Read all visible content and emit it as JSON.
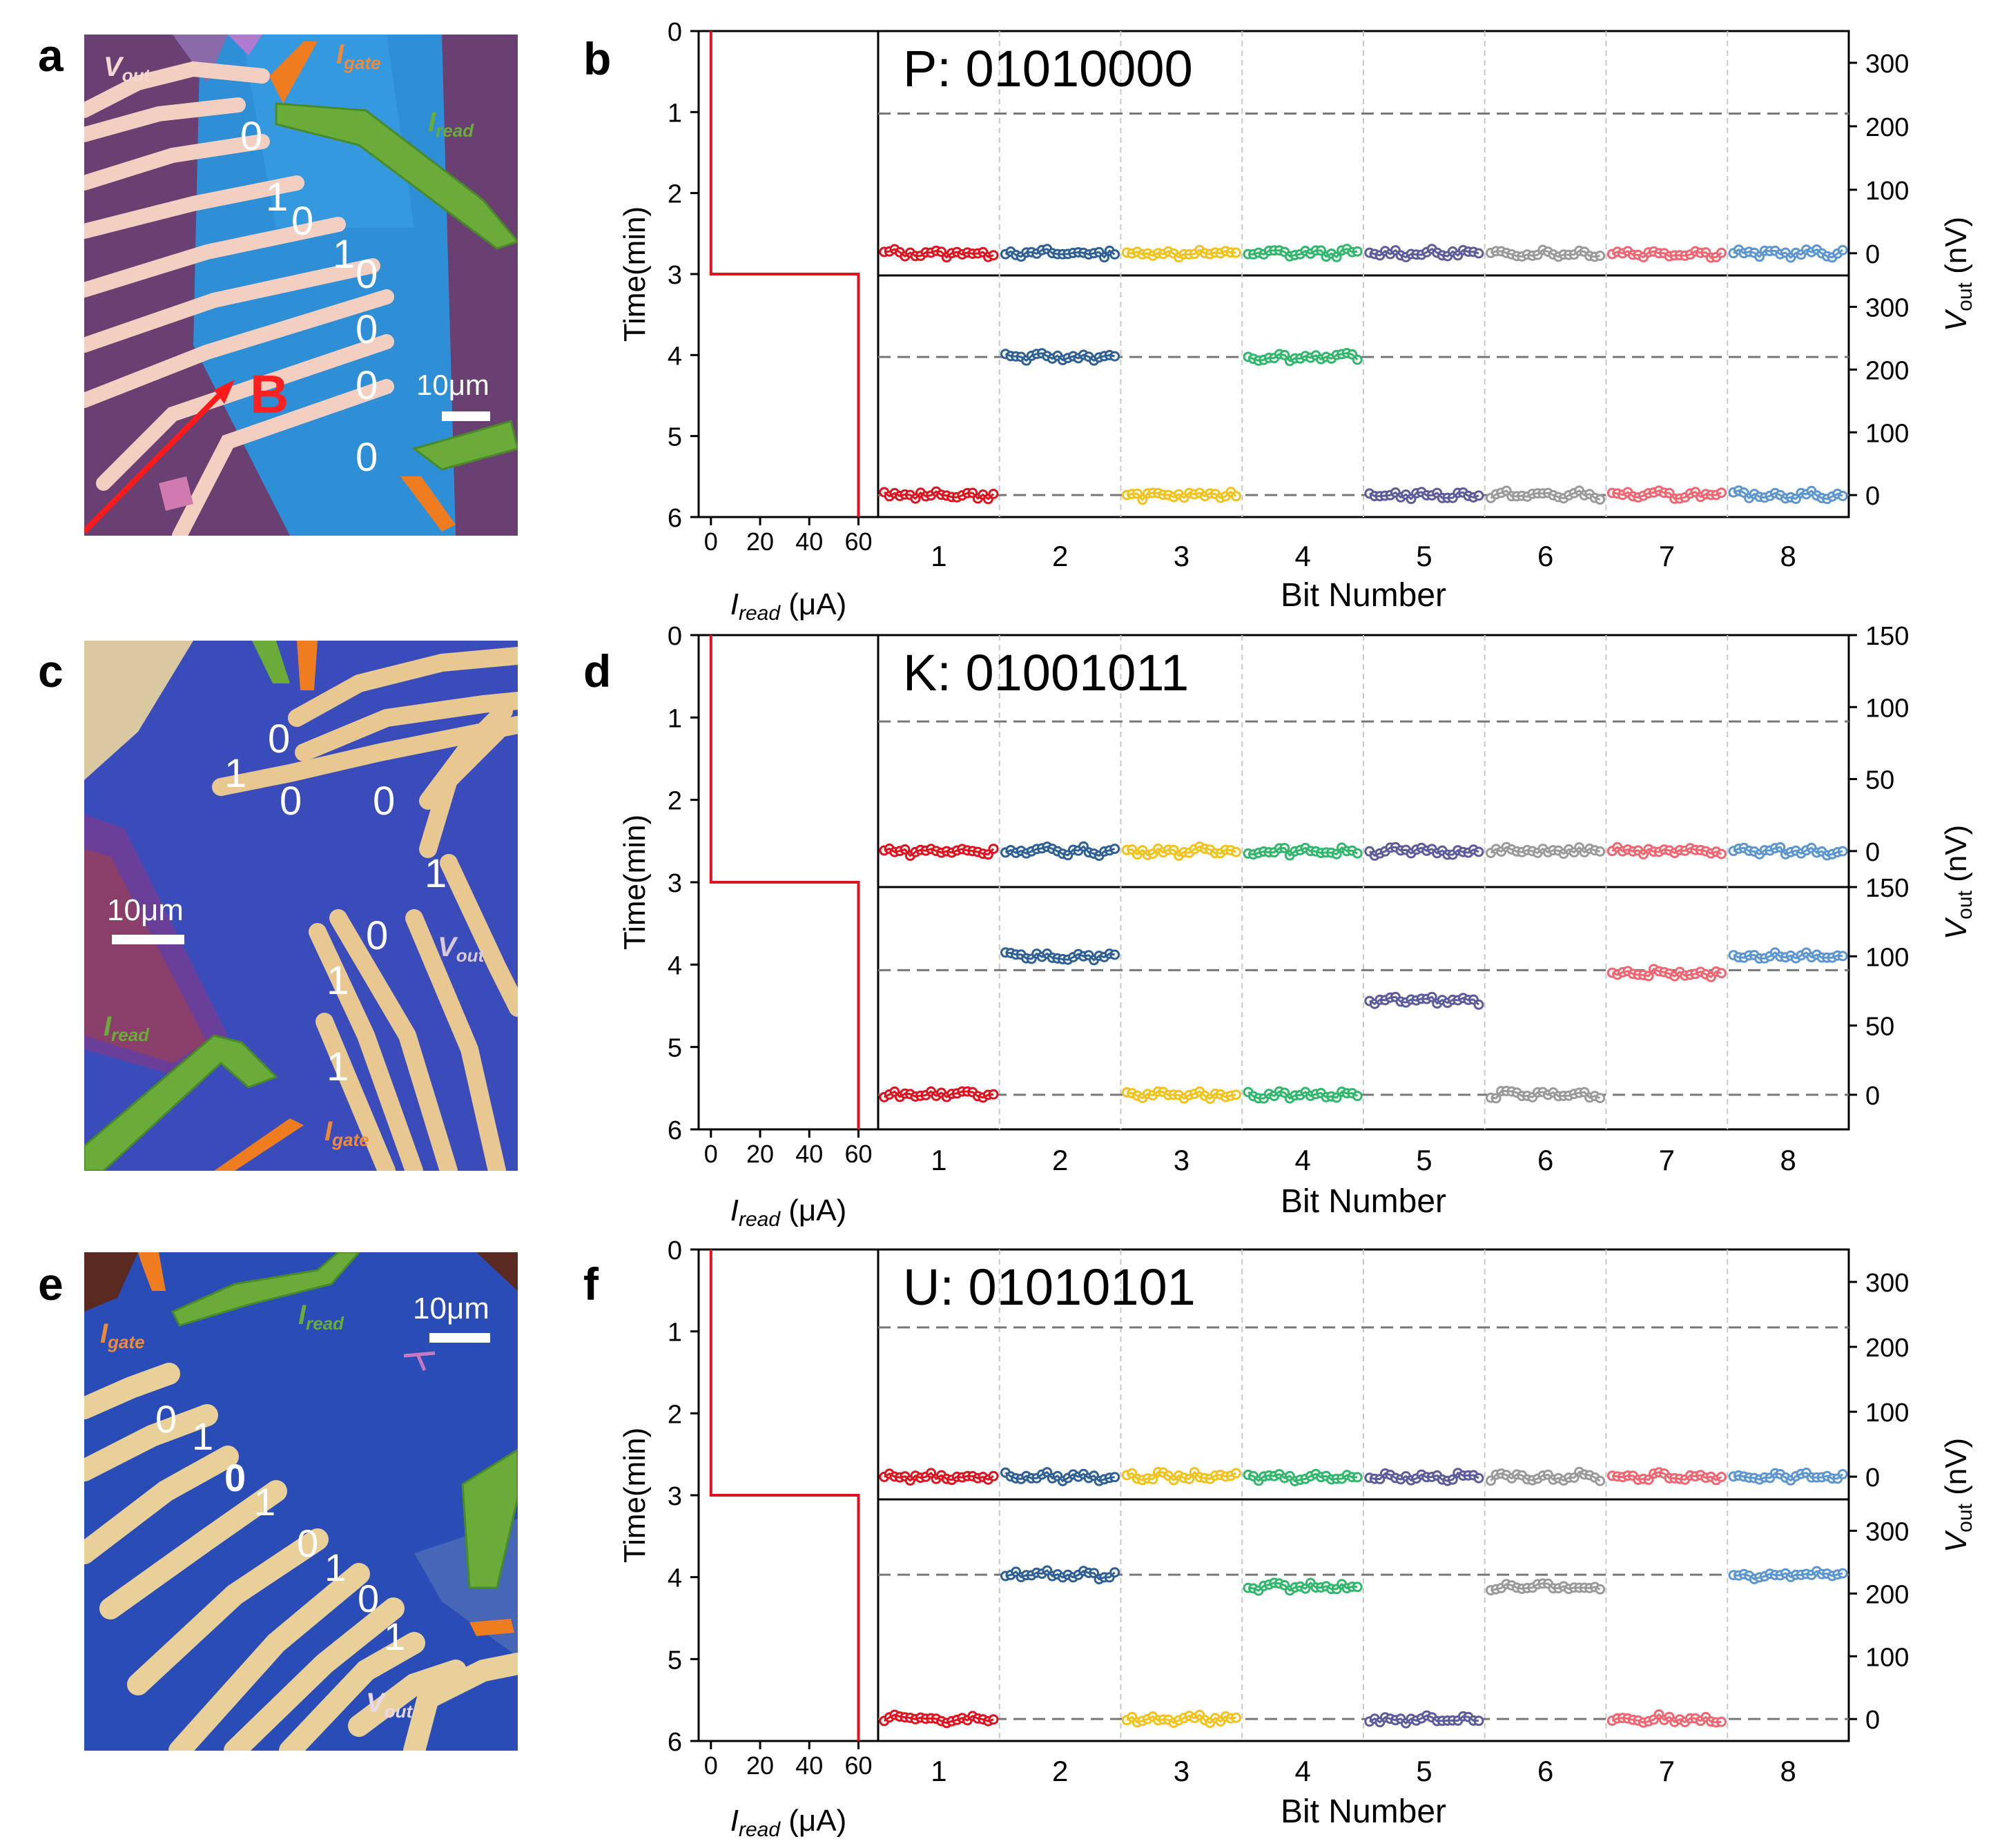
{
  "colors": {
    "bit": [
      "#e0121e",
      "#2e5f97",
      "#f3c21a",
      "#2fb86b",
      "#5b5b9e",
      "#9a9a9a",
      "#f26470",
      "#5b95d2"
    ],
    "current_trace": "#e0121e",
    "reference_line": "#777777",
    "divider_line": "#c8c8c8"
  },
  "labels": {
    "time_axis": "Time(min)",
    "current_axis_symbol": "I",
    "current_axis_sub": "read",
    "current_axis_unit": " (μA)",
    "voltage_axis_symbol": "V",
    "voltage_axis_sub": "out",
    "voltage_axis_unit": " (nV)",
    "bit_axis": "Bit Number"
  },
  "images": [
    {
      "panel": "a",
      "scale_bar": "10μm",
      "field_label": "B",
      "terminal_vout": "V",
      "terminal_vout_sub": "out",
      "terminal_igate": "I",
      "terminal_igate_sub": "gate",
      "terminal_iread": "I",
      "terminal_iread_sub": "read",
      "bits": [
        "0",
        "1",
        "0",
        "1",
        "0",
        "0",
        "0",
        "0"
      ]
    },
    {
      "panel": "c",
      "scale_bar": "10μm",
      "terminal_vout": "V",
      "terminal_vout_sub": "out",
      "terminal_igate": "I",
      "terminal_igate_sub": "gate",
      "terminal_iread": "I",
      "terminal_iread_sub": "read",
      "bits": [
        "0",
        "1",
        "0",
        "0",
        "1",
        "0",
        "1",
        "1"
      ]
    },
    {
      "panel": "e",
      "scale_bar": "10μm",
      "terminal_vout": "V",
      "terminal_vout_sub": "out",
      "terminal_igate": "I",
      "terminal_igate_sub": "gate",
      "terminal_iread": "I",
      "terminal_iread_sub": "read",
      "bits": [
        "0",
        "1",
        "0",
        "1",
        "0",
        "1",
        "0",
        "1"
      ]
    }
  ],
  "chart_data": [
    {
      "panel": "b",
      "type": "line",
      "title": "P: 01010000",
      "current_trace": {
        "time_min": [
          0,
          3,
          3,
          6
        ],
        "current_uA": [
          0,
          0,
          60,
          60
        ],
        "xlim": [
          -5,
          68
        ],
        "xticks": [
          0,
          20,
          40,
          60
        ]
      },
      "time_axis": {
        "ylim": [
          0,
          6
        ],
        "ticks": [
          0,
          1,
          2,
          3,
          4,
          5,
          6
        ]
      },
      "bit_axis": {
        "xlim": [
          0.5,
          8.5
        ],
        "ticks": [
          "1",
          "2",
          "3",
          "4",
          "5",
          "6",
          "7",
          "8"
        ]
      },
      "voltage_axis": {
        "ylim": [
          -35,
          350
        ],
        "ticks": [
          0,
          100,
          200,
          300
        ]
      },
      "reference_levels_nV": [
        0,
        220
      ],
      "before_switch_nV": [
        0,
        0,
        0,
        0,
        0,
        0,
        0,
        0
      ],
      "after_switch_nV": [
        0,
        220,
        0,
        220,
        0,
        0,
        0,
        0
      ],
      "bits": "01010000"
    },
    {
      "panel": "d",
      "type": "line",
      "title": "K: 01001011",
      "current_trace": {
        "time_min": [
          0,
          3,
          3,
          6
        ],
        "current_uA": [
          0,
          0,
          60,
          60
        ],
        "xlim": [
          -5,
          68
        ],
        "xticks": [
          0,
          20,
          40,
          60
        ]
      },
      "time_axis": {
        "ylim": [
          0,
          6
        ],
        "ticks": [
          0,
          1,
          2,
          3,
          4,
          5,
          6
        ]
      },
      "bit_axis": {
        "xlim": [
          0.5,
          8.5
        ],
        "ticks": [
          "1",
          "2",
          "3",
          "4",
          "5",
          "6",
          "7",
          "8"
        ]
      },
      "voltage_axis": {
        "ylim": [
          -25,
          150
        ],
        "ticks": [
          0,
          50,
          100,
          150
        ]
      },
      "reference_levels_nV": [
        0,
        90
      ],
      "before_switch_nV": [
        0,
        0,
        0,
        0,
        0,
        0,
        0,
        0
      ],
      "after_switch_nV": [
        0,
        100,
        0,
        0,
        68,
        0,
        88,
        100
      ],
      "bits": "01001011"
    },
    {
      "panel": "f",
      "type": "line",
      "title": "U: 01010101",
      "current_trace": {
        "time_min": [
          0,
          3,
          3,
          6
        ],
        "current_uA": [
          0,
          0,
          60,
          60
        ],
        "xlim": [
          -5,
          68
        ],
        "xticks": [
          0,
          20,
          40,
          60
        ]
      },
      "time_axis": {
        "ylim": [
          0,
          6
        ],
        "ticks": [
          0,
          1,
          2,
          3,
          4,
          5,
          6
        ]
      },
      "bit_axis": {
        "xlim": [
          0.5,
          8.5
        ],
        "ticks": [
          "1",
          "2",
          "3",
          "4",
          "5",
          "6",
          "7",
          "8"
        ]
      },
      "voltage_axis": {
        "ylim": [
          -35,
          350
        ],
        "ticks": [
          0,
          100,
          200,
          300
        ]
      },
      "reference_levels_nV": [
        0,
        230
      ],
      "before_switch_nV": [
        0,
        0,
        0,
        0,
        0,
        0,
        0,
        0
      ],
      "after_switch_nV": [
        0,
        230,
        0,
        210,
        0,
        210,
        0,
        230
      ],
      "bits": "01010101"
    }
  ]
}
